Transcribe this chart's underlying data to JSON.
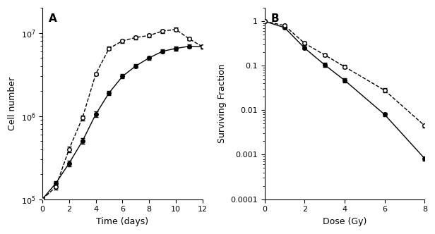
{
  "panel_A": {
    "solid_x": [
      0,
      1,
      2,
      3,
      4,
      5,
      6,
      7,
      8,
      9,
      10,
      11,
      12
    ],
    "solid_y": [
      100000.0,
      155000.0,
      270000.0,
      500000.0,
      1050000.0,
      1900000.0,
      3000000.0,
      4000000.0,
      5000000.0,
      6000000.0,
      6500000.0,
      6900000.0,
      6800000.0
    ],
    "dashed_x": [
      0,
      1,
      2,
      3,
      4,
      5,
      6,
      7,
      8,
      9,
      10,
      11,
      12
    ],
    "dashed_y": [
      100000.0,
      140000.0,
      400000.0,
      950000.0,
      3200000.0,
      6500000.0,
      8000000.0,
      8800000.0,
      9300000.0,
      10500000.0,
      11000000.0,
      8500000.0,
      6800000.0
    ],
    "solid_yerr": [
      5000.0,
      10000.0,
      20000.0,
      40000.0,
      80000.0,
      120000.0,
      180000.0,
      200000.0,
      250000.0,
      300000.0,
      350000.0,
      300000.0,
      300000.0
    ],
    "dashed_yerr": [
      5000.0,
      10000.0,
      30000.0,
      60000.0,
      150000.0,
      300000.0,
      400000.0,
      450000.0,
      500000.0,
      500000.0,
      500000.0,
      400000.0,
      300000.0
    ],
    "xlabel": "Time (days)",
    "ylabel": "Cell number",
    "ylim": [
      100000.0,
      20000000.0
    ],
    "xlim": [
      0,
      12
    ],
    "xticks": [
      0,
      2,
      4,
      6,
      8,
      10,
      12
    ],
    "yticks": [
      100000,
      1000000,
      10000000
    ],
    "ytick_labels": [
      "10$^5$",
      "10$^6$",
      "10$^7$"
    ],
    "label": "A"
  },
  "panel_B": {
    "solid_x": [
      0,
      1,
      2,
      3,
      4,
      6,
      8
    ],
    "solid_y": [
      1.0,
      0.72,
      0.25,
      0.105,
      0.047,
      0.008,
      0.00082
    ],
    "dashed_x": [
      0,
      1,
      2,
      3,
      4,
      6,
      8
    ],
    "dashed_y": [
      1.0,
      0.8,
      0.32,
      0.175,
      0.095,
      0.028,
      0.0045
    ],
    "solid_yerr": [
      0.02,
      0.04,
      0.02,
      0.01,
      0.005,
      0.0008,
      0.0001
    ],
    "dashed_yerr": [
      0.02,
      0.04,
      0.025,
      0.015,
      0.008,
      0.003,
      0.0004
    ],
    "xlabel": "Dose (Gy)",
    "ylabel": "Surviving Fraction",
    "ylim": [
      0.0001,
      2.0
    ],
    "xlim": [
      0,
      8
    ],
    "xticks": [
      0,
      2,
      4,
      6,
      8
    ],
    "yticks": [
      0.0001,
      0.001,
      0.01,
      0.1,
      1
    ],
    "ytick_labels": [
      "0.0001",
      "0.001",
      "0.01",
      "0.1",
      "1"
    ],
    "label": "B"
  },
  "bg_color": "#ffffff",
  "line_color": "#000000"
}
